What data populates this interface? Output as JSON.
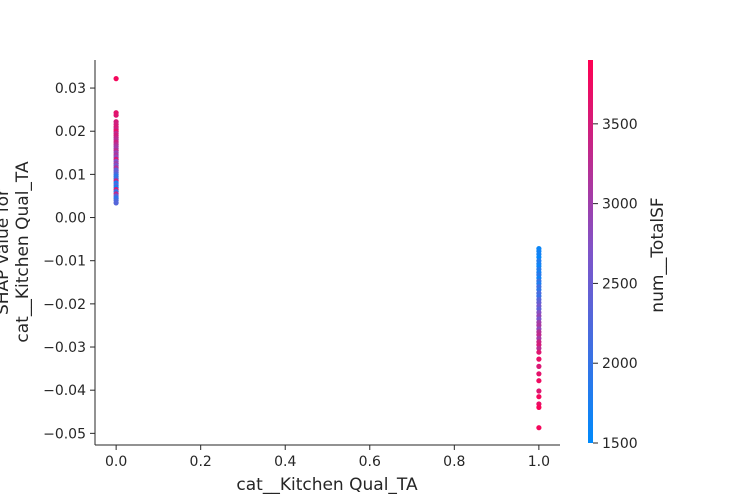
{
  "chart_data": {
    "type": "scatter",
    "title": "",
    "xlabel": "cat__Kitchen Qual_TA",
    "ylabel_lines": [
      "SHAP value for",
      "cat__Kitchen Qual_TA"
    ],
    "xlim": [
      -0.05,
      1.05
    ],
    "ylim": [
      -0.0527,
      0.0365
    ],
    "x_ticks": [
      0.0,
      0.2,
      0.4,
      0.6,
      0.8,
      1.0
    ],
    "x_tick_labels": [
      "0.0",
      "0.2",
      "0.4",
      "0.6",
      "0.8",
      "1.0"
    ],
    "y_ticks": [
      0.03,
      0.02,
      0.01,
      0.0,
      -0.01,
      -0.02,
      -0.03,
      -0.04,
      -0.05
    ],
    "y_tick_labels": [
      "0.03",
      "0.02",
      "0.01",
      "0.00",
      "−0.01",
      "−0.02",
      "−0.03",
      "−0.04",
      "−0.05"
    ],
    "grid": false,
    "colorbar": {
      "label": "num__TotalSF",
      "range": [
        1500,
        3900
      ],
      "ticks": [
        1500,
        2000,
        2500,
        3000,
        3500
      ],
      "tick_labels": [
        "1500",
        "2000",
        "2500",
        "3000",
        "3500"
      ],
      "colors": [
        "#008afb",
        "#7f54c9",
        "#ff0052"
      ]
    },
    "series": [
      {
        "x_value": 0,
        "points": [
          [
            0.0322,
            3800
          ],
          [
            0.0243,
            3650
          ],
          [
            0.0237,
            3600
          ],
          [
            0.0222,
            3500
          ],
          [
            0.0216,
            3450
          ],
          [
            0.021,
            3550
          ],
          [
            0.0205,
            3400
          ],
          [
            0.02,
            3700
          ],
          [
            0.0195,
            3300
          ],
          [
            0.019,
            3500
          ],
          [
            0.0185,
            3350
          ],
          [
            0.018,
            3200
          ],
          [
            0.0175,
            3450
          ],
          [
            0.017,
            3250
          ],
          [
            0.0165,
            3100
          ],
          [
            0.016,
            3000
          ],
          [
            0.0155,
            3300
          ],
          [
            0.015,
            2900
          ],
          [
            0.0145,
            3150
          ],
          [
            0.014,
            2800
          ],
          [
            0.0135,
            3600
          ],
          [
            0.013,
            2700
          ],
          [
            0.0125,
            3000
          ],
          [
            0.012,
            2600
          ],
          [
            0.0115,
            3200
          ],
          [
            0.011,
            2400
          ],
          [
            0.0105,
            2500
          ],
          [
            0.01,
            2200
          ],
          [
            0.0095,
            1900
          ],
          [
            0.009,
            2100
          ],
          [
            0.0085,
            3400
          ],
          [
            0.008,
            1800
          ],
          [
            0.0075,
            2300
          ],
          [
            0.007,
            1700
          ],
          [
            0.0065,
            3500
          ],
          [
            0.006,
            2000
          ],
          [
            0.0055,
            3300
          ],
          [
            0.005,
            2400
          ],
          [
            0.0045,
            1900
          ],
          [
            0.004,
            2200
          ],
          [
            0.0034,
            2300
          ]
        ]
      },
      {
        "x_value": 1,
        "points": [
          [
            -0.0072,
            1600
          ],
          [
            -0.0078,
            1650
          ],
          [
            -0.0085,
            1700
          ],
          [
            -0.0092,
            1550
          ],
          [
            -0.01,
            1800
          ],
          [
            -0.0107,
            1750
          ],
          [
            -0.0113,
            1600
          ],
          [
            -0.012,
            1850
          ],
          [
            -0.0127,
            1700
          ],
          [
            -0.0133,
            1900
          ],
          [
            -0.014,
            1650
          ],
          [
            -0.0147,
            2000
          ],
          [
            -0.0153,
            1800
          ],
          [
            -0.016,
            2100
          ],
          [
            -0.0167,
            1950
          ],
          [
            -0.0175,
            2200
          ],
          [
            -0.0182,
            2050
          ],
          [
            -0.019,
            2300
          ],
          [
            -0.0197,
            2450
          ],
          [
            -0.0205,
            2600
          ],
          [
            -0.0212,
            2400
          ],
          [
            -0.022,
            2750
          ],
          [
            -0.0228,
            2900
          ],
          [
            -0.0235,
            2650
          ],
          [
            -0.0243,
            3000
          ],
          [
            -0.025,
            3100
          ],
          [
            -0.0258,
            2850
          ],
          [
            -0.0265,
            3200
          ],
          [
            -0.0272,
            3300
          ],
          [
            -0.028,
            3050
          ],
          [
            -0.0288,
            3400
          ],
          [
            -0.0295,
            3500
          ],
          [
            -0.0303,
            3250
          ],
          [
            -0.0312,
            3600
          ],
          [
            -0.0328,
            3700
          ],
          [
            -0.0345,
            3550
          ],
          [
            -0.0362,
            3650
          ],
          [
            -0.0378,
            3750
          ],
          [
            -0.0402,
            3600
          ],
          [
            -0.0415,
            3800
          ],
          [
            -0.0432,
            3700
          ],
          [
            -0.044,
            3850
          ],
          [
            -0.0487,
            3800
          ]
        ]
      }
    ]
  }
}
